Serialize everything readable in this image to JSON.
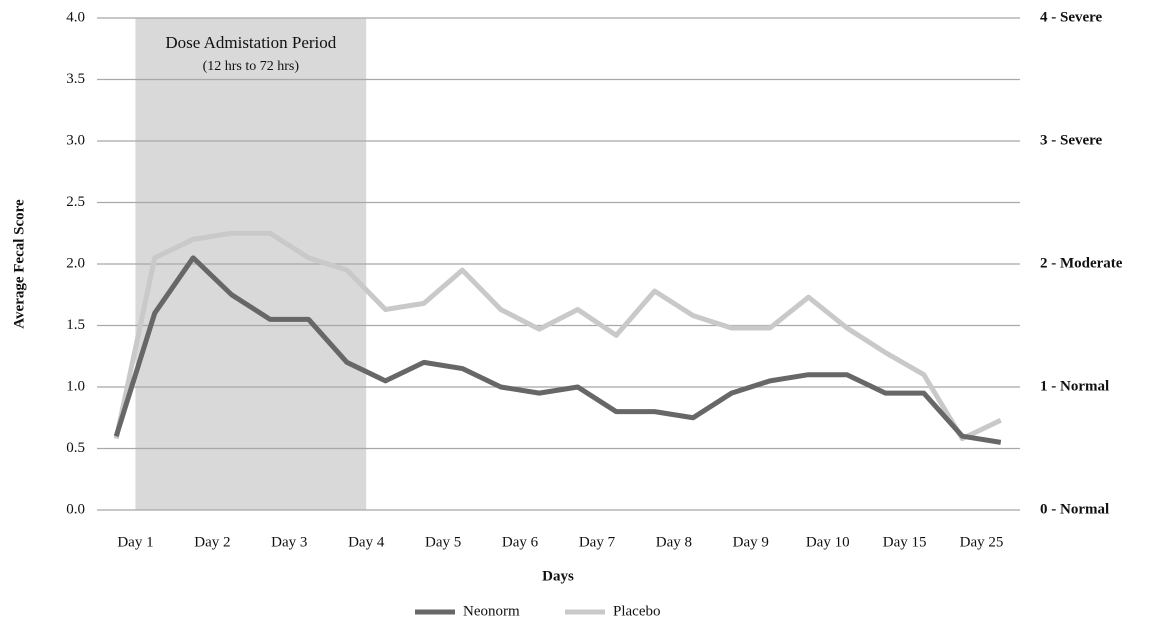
{
  "chart_data": {
    "type": "line",
    "y_label": "Average Fecal Score",
    "x_label": "Days",
    "annotation": {
      "title": "Dose Admistation Period",
      "subtitle": "(12 hrs to 72 hrs)"
    },
    "categories": [
      "Day 1",
      null,
      "Day 2",
      null,
      "Day 3",
      null,
      "Day 4",
      null,
      "Day 5",
      null,
      "Day 6",
      null,
      "Day 7",
      null,
      "Day 8",
      null,
      "Day 9",
      null,
      "Day 10",
      null,
      "Day 15",
      null,
      "Day 25",
      null
    ],
    "series": [
      {
        "name": "Neonorm",
        "color": "#676767",
        "values": [
          0.6,
          1.6,
          2.05,
          1.75,
          1.55,
          1.55,
          1.2,
          1.05,
          1.2,
          1.15,
          1.0,
          0.95,
          1.0,
          0.8,
          0.8,
          0.75,
          0.95,
          1.05,
          1.1,
          1.1,
          0.95,
          0.95,
          0.6,
          0.55
        ]
      },
      {
        "name": "Placebo",
        "color": "#c9c9c9",
        "values": [
          0.58,
          2.05,
          2.2,
          2.25,
          2.25,
          2.05,
          1.95,
          1.63,
          1.68,
          1.95,
          1.63,
          1.47,
          1.63,
          1.42,
          1.78,
          1.58,
          1.48,
          1.48,
          1.73,
          1.48,
          1.28,
          1.1,
          0.58,
          0.73
        ]
      }
    ],
    "ylim": [
      0,
      4
    ],
    "yticks": [
      {
        "value": 0,
        "label": "0.0"
      },
      0.5,
      {
        "value": 1,
        "label": "1.0"
      },
      1.5,
      {
        "value": 2,
        "label": "2.0"
      },
      2.5,
      {
        "value": 3,
        "label": "3.0"
      },
      3.5,
      {
        "value": 4,
        "label": "4.0"
      }
    ],
    "y2lim": [
      0,
      4
    ],
    "y2ticks": [
      {
        "value": 4,
        "label": "4 - Severe"
      },
      {
        "value": 3,
        "label": "3 - Severe"
      },
      {
        "value": 2,
        "label": "2 - Moderate"
      },
      {
        "value": 1,
        "label": "1 - Normal"
      },
      {
        "value": 0,
        "label": "0 - Normal"
      }
    ],
    "grid": true,
    "legend": "bottom"
  }
}
